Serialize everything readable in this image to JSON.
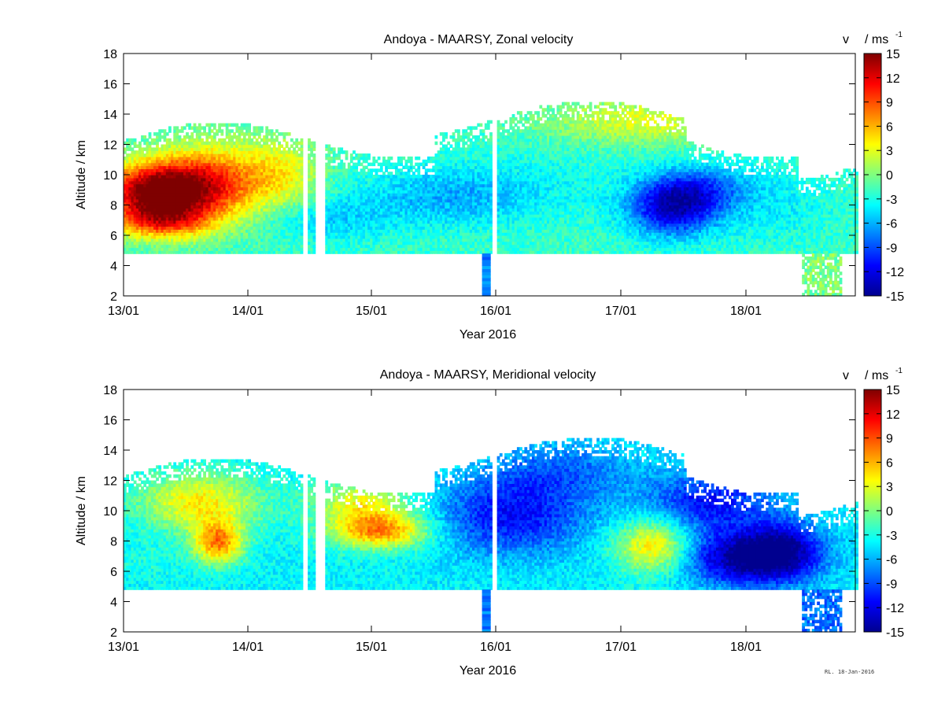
{
  "figure_note": "RL. 18-Jan-2016",
  "colormap": [
    "#00008f",
    "#0000ff",
    "#007fff",
    "#00ffff",
    "#7fff7f",
    "#ffff00",
    "#ff7f00",
    "#ff0000",
    "#7f0000"
  ],
  "chart_data": [
    {
      "type": "heatmap",
      "title": "Andoya - MAARSY, Zonal velocity",
      "xlabel": "Year 2016",
      "ylabel": "Altitude / km",
      "colorbar_label": "v",
      "colorbar_unit": "/ ms",
      "colorbar_unit_exp": "-1",
      "xticks": [
        "13/01",
        "14/01",
        "15/01",
        "16/01",
        "17/01",
        "18/01"
      ],
      "xlim_days": [
        0,
        5.88
      ],
      "ylim": [
        2,
        18
      ],
      "yticks": [
        2,
        4,
        6,
        8,
        10,
        12,
        14,
        16,
        18
      ],
      "clim": [
        -15,
        15
      ],
      "cticks": [
        15,
        12,
        9,
        6,
        3,
        0,
        -3,
        -6,
        -9,
        -12,
        -15
      ],
      "data_floor_km": 4.8,
      "gaps_days": [
        [
          1.43,
          1.47
        ],
        [
          1.54,
          1.57
        ],
        [
          1.58,
          1.61
        ],
        [
          2.95,
          3.0
        ],
        [
          5.45,
          5.45
        ]
      ],
      "features": [
        {
          "t": 0.25,
          "z": 8.8,
          "v": 14,
          "dt": 0.45,
          "dz": 1.8
        },
        {
          "t": 0.7,
          "z": 9.5,
          "v": 8,
          "dt": 0.5,
          "dz": 2.5
        },
        {
          "t": 0.3,
          "z": 6.8,
          "v": 7,
          "dt": 0.4,
          "dz": 1.2
        },
        {
          "t": 1.3,
          "z": 10.0,
          "v": 2,
          "dt": 0.3,
          "dz": 2.5
        },
        {
          "t": 1.6,
          "z": 7.0,
          "v": -5,
          "dt": 0.5,
          "dz": 1.5
        },
        {
          "t": 2.6,
          "z": 8.5,
          "v": -6,
          "dt": 0.7,
          "dz": 2.0
        },
        {
          "t": 3.5,
          "z": 9.5,
          "v": -3,
          "dt": 0.8,
          "dz": 2.5
        },
        {
          "t": 4.4,
          "z": 7.6,
          "v": -12,
          "dt": 0.35,
          "dz": 1.8
        },
        {
          "t": 4.6,
          "z": 9.0,
          "v": -8,
          "dt": 0.4,
          "dz": 1.5
        },
        {
          "t": 4.2,
          "z": 13.5,
          "v": 3,
          "dt": 0.8,
          "dz": 1.5
        },
        {
          "t": 5.2,
          "z": 8.0,
          "v": -4,
          "dt": 0.5,
          "dz": 2.5
        }
      ],
      "background_v": -2
    },
    {
      "type": "heatmap",
      "title": "Andoya - MAARSY, Meridional velocity",
      "xlabel": "Year 2016",
      "ylabel": "Altitude / km",
      "colorbar_label": "v",
      "colorbar_unit": "/ ms",
      "colorbar_unit_exp": "-1",
      "xticks": [
        "13/01",
        "14/01",
        "15/01",
        "16/01",
        "17/01",
        "18/01"
      ],
      "xlim_days": [
        0,
        5.88
      ],
      "ylim": [
        2,
        18
      ],
      "yticks": [
        2,
        4,
        6,
        8,
        10,
        12,
        14,
        16,
        18
      ],
      "clim": [
        -15,
        15
      ],
      "cticks": [
        15,
        12,
        9,
        6,
        3,
        0,
        -3,
        -6,
        -9,
        -12,
        -15
      ],
      "data_floor_km": 4.8,
      "gaps_days": [
        [
          1.43,
          1.47
        ],
        [
          1.54,
          1.57
        ],
        [
          1.58,
          1.61
        ],
        [
          2.95,
          3.0
        ]
      ],
      "features": [
        {
          "t": 0.75,
          "z": 7.8,
          "v": 7,
          "dt": 0.2,
          "dz": 1.4
        },
        {
          "t": 0.6,
          "z": 10.5,
          "v": 4,
          "dt": 0.5,
          "dz": 2.0
        },
        {
          "t": 0.2,
          "z": 6.5,
          "v": -3,
          "dt": 0.3,
          "dz": 1.2
        },
        {
          "t": 2.05,
          "z": 8.6,
          "v": 7,
          "dt": 0.4,
          "dz": 1.2
        },
        {
          "t": 1.9,
          "z": 10.5,
          "v": 3,
          "dt": 0.4,
          "dz": 1.5
        },
        {
          "t": 3.1,
          "z": 9.5,
          "v": -11,
          "dt": 0.6,
          "dz": 2.5
        },
        {
          "t": 3.5,
          "z": 12.5,
          "v": -8,
          "dt": 0.6,
          "dz": 2.0
        },
        {
          "t": 3.9,
          "z": 8.0,
          "v": -4,
          "dt": 0.4,
          "dz": 2.0
        },
        {
          "t": 4.25,
          "z": 7.6,
          "v": 5,
          "dt": 0.3,
          "dz": 1.8
        },
        {
          "t": 5.0,
          "z": 6.8,
          "v": -15,
          "dt": 0.5,
          "dz": 1.8
        },
        {
          "t": 4.7,
          "z": 10.5,
          "v": -11,
          "dt": 0.5,
          "dz": 2.0
        },
        {
          "t": 5.3,
          "z": 7.5,
          "v": -10,
          "dt": 0.3,
          "dz": 2.0
        }
      ],
      "background_v": -4
    }
  ]
}
